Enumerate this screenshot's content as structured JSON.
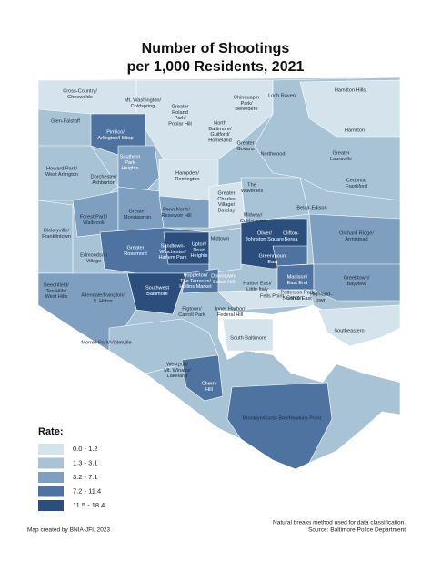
{
  "header": {
    "title": [
      "Number of Shootings",
      "per 1,000 Residents, 2021"
    ]
  },
  "legend": {
    "title": "Rate:",
    "items": [
      {
        "label": "0.0 - 1.2",
        "color": "#d5e3ec"
      },
      {
        "label": "1.3 - 3.1",
        "color": "#a9c3d6"
      },
      {
        "label": "3.2 - 7.1",
        "color": "#7f9fc0"
      },
      {
        "label": "7.2 - 11.4",
        "color": "#4f73a0"
      },
      {
        "label": "11.5 - 18.4",
        "color": "#2b4e7c"
      }
    ]
  },
  "labels": [
    [
      "Cross-Country/",
      "Cheswolde"
    ],
    [
      "Mt. Washington/",
      "Coldspring"
    ],
    [
      "Greater",
      "Roland",
      "Park/",
      "Poplar Hill"
    ],
    [
      "Chinquapin",
      "Park/",
      "Belvedere"
    ],
    [
      "Loch Raven"
    ],
    [
      "Hamilton Hills"
    ],
    [
      "Glen-Falstaff"
    ],
    [
      "North",
      "Baltimore/",
      "Guilford/",
      "Homeland"
    ],
    [
      "Hamilton"
    ],
    [
      "Pimlico/",
      "Arlington/Hilltop"
    ],
    [
      "Southern",
      "Park",
      "Heights"
    ],
    [
      "Greater",
      "Govans"
    ],
    [
      "Northwood"
    ],
    [
      "Greater",
      "Lauraville"
    ],
    [
      "Howard Park/",
      "West Arlington"
    ],
    [
      "Dorchester/",
      "Ashburton"
    ],
    [
      "Hampden/",
      "Remington"
    ],
    [
      "The",
      "Waverlies"
    ],
    [
      "Cedonia/",
      "Frankford"
    ],
    [
      "Greater",
      "Charles",
      "Village/",
      "Barclay"
    ],
    [
      "Belair-Edison"
    ],
    [
      "Penn North/",
      "Reservoir Hill"
    ],
    [
      "Forest Park/",
      "Walbrook"
    ],
    [
      "Greater",
      "Mondawmin"
    ],
    [
      "Midway/",
      "Coldstream"
    ],
    [
      "Dickeyville/",
      "Franklintown"
    ],
    [
      "Orchard Ridge/",
      "Armistead"
    ],
    [
      "Oliver/",
      "Johnston Square"
    ],
    [
      "Clifton-",
      "Berea"
    ],
    [
      "Midtown"
    ],
    [
      "Edmondson",
      "Village"
    ],
    [
      "Greater",
      "Rosemont"
    ],
    [
      "Sandtown-",
      "Winchester/",
      "Harlem Park"
    ],
    [
      "Upton/",
      "Druid",
      "Heights"
    ],
    [
      "Greenmount",
      "East"
    ],
    [
      "Madison/",
      "East End"
    ],
    [
      "Patterson Park",
      "North & East"
    ],
    [
      "Beechfield/",
      "Ten Hills/",
      "West Hills"
    ],
    [
      "Allendale/Irvington/",
      "S. Hilton"
    ],
    [
      "Poppleton/",
      "The Terraces/",
      "Hollins Market"
    ],
    [
      "Downtown/",
      "Seton Hill"
    ],
    [
      "Harbor East/",
      "Little Italy"
    ],
    [
      "Fells Point"
    ],
    [
      "Canton"
    ],
    [
      "Highland-",
      "town"
    ],
    [
      "Greektown/",
      "Bayview"
    ],
    [
      "Southwest",
      "Baltimore"
    ],
    [
      "Pigtown/",
      "Carroll Park"
    ],
    [
      "Inner Harbor/",
      "Federal Hill"
    ],
    [
      "Southeastern"
    ],
    [
      "Morrell Park/Violetville"
    ],
    [
      "South Baltimore"
    ],
    [
      "Westport/",
      "Mt. Winans/",
      "Lakeland"
    ],
    [
      "Cherry",
      "Hill"
    ],
    [
      "Brooklyn/Curtis Bay/Hawkins Point"
    ]
  ],
  "footer": {
    "credit": "Map created by BNIA-JFI, 2023",
    "notes": [
      "Natural breaks method used for data classification.",
      "Source: Baltimore Police Department"
    ]
  }
}
